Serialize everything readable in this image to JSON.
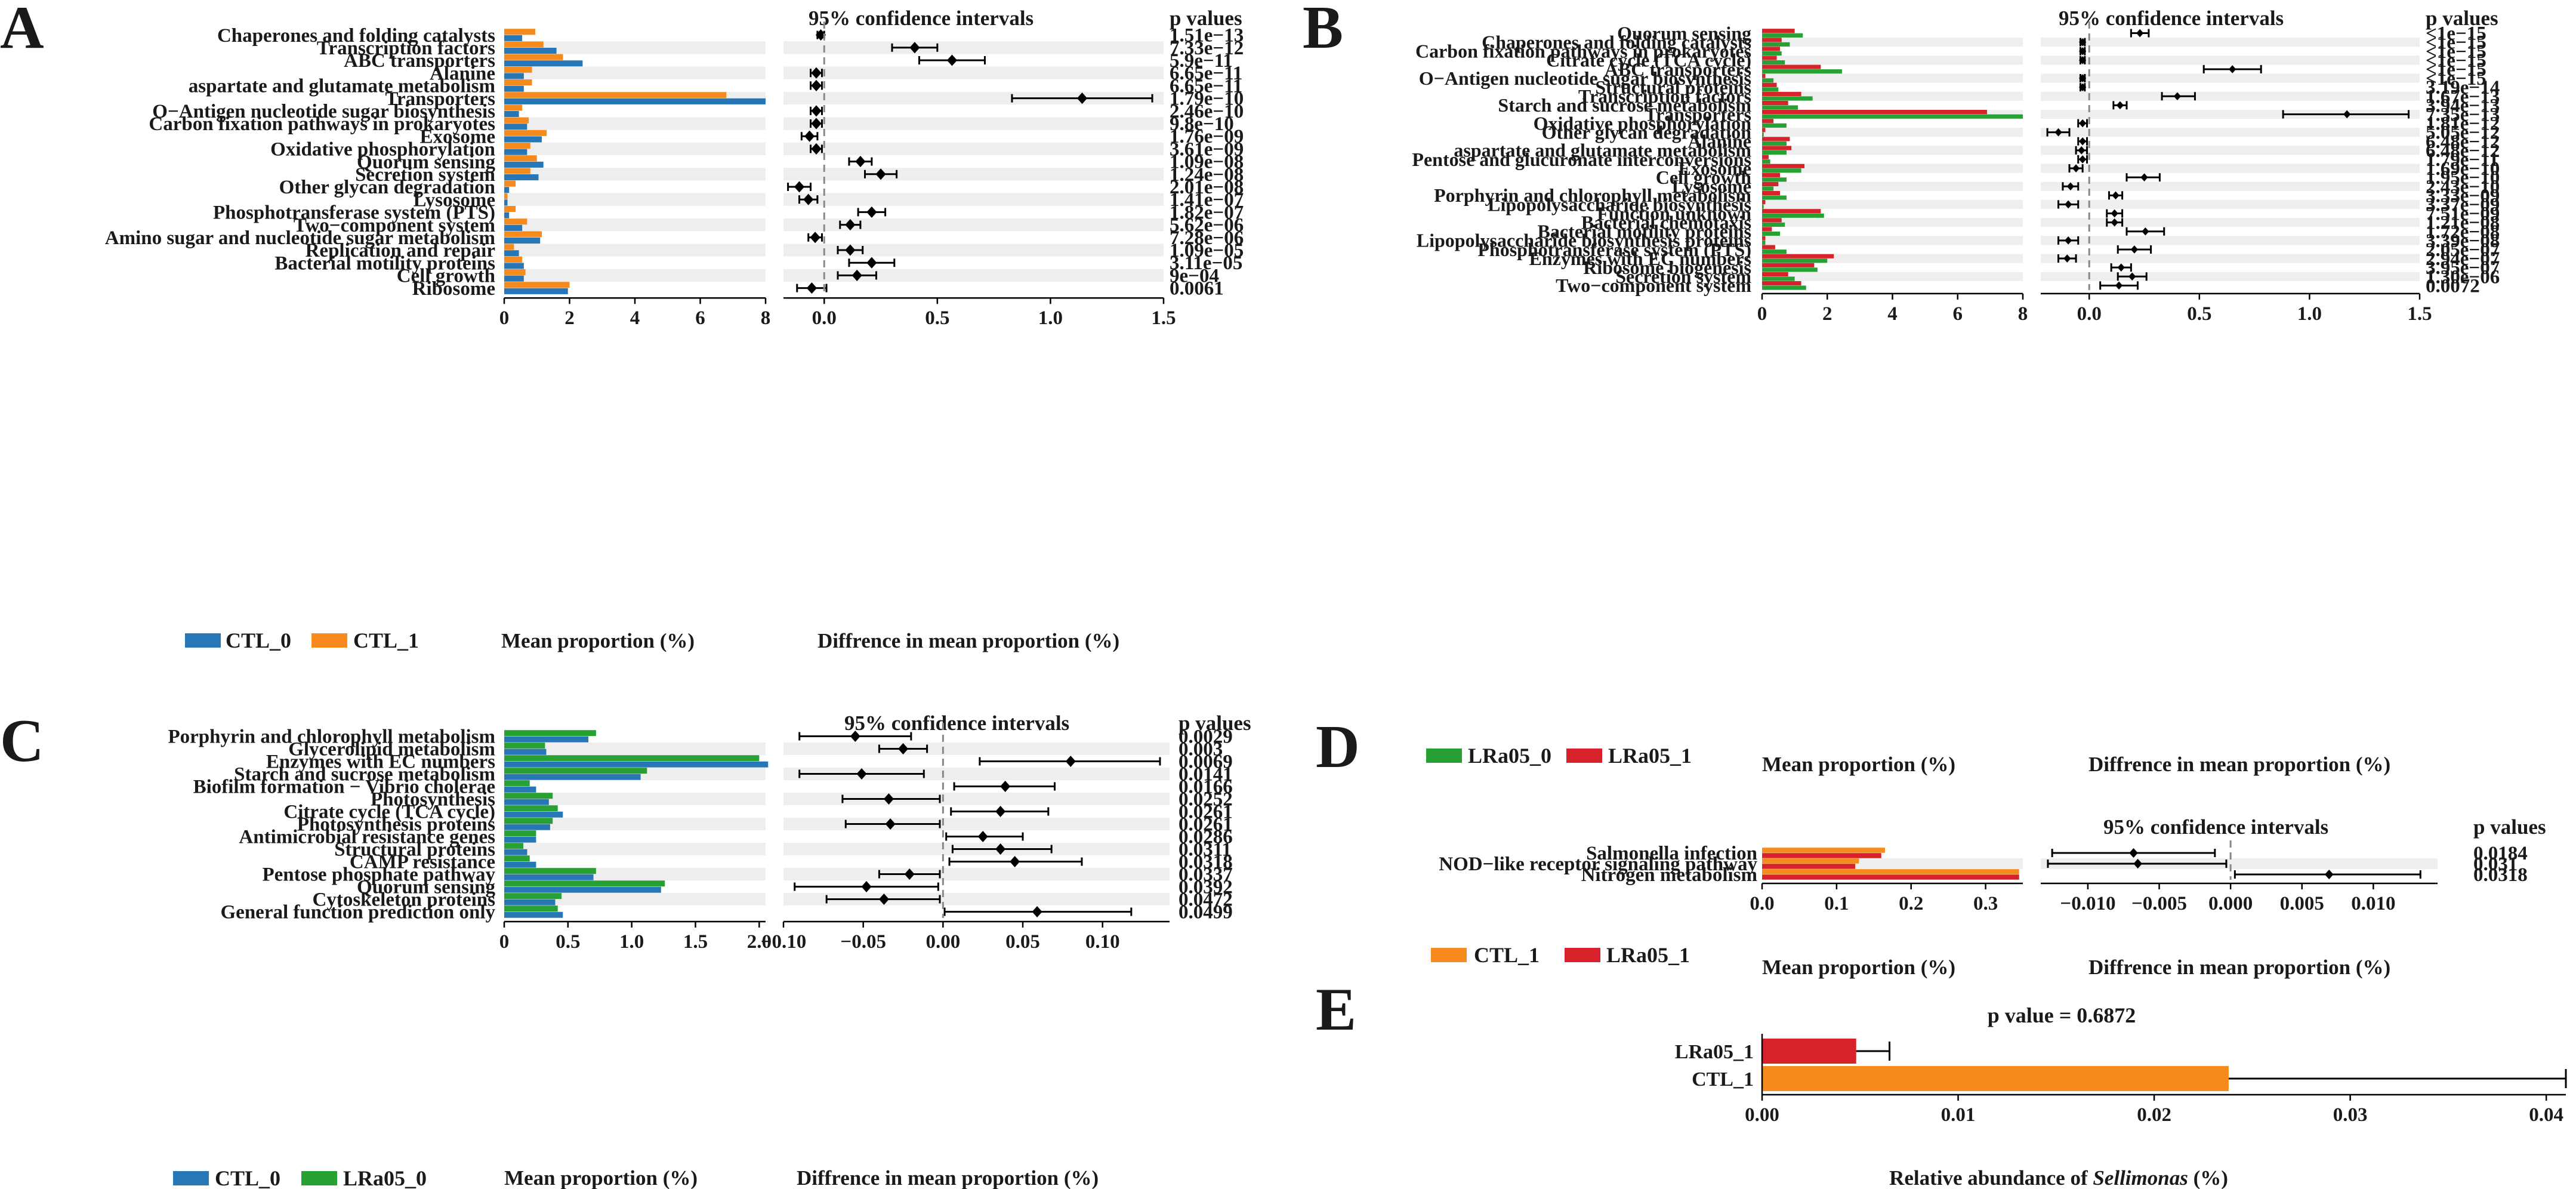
{
  "colors": {
    "CTL_0": "#2776b6",
    "CTL_1": "#f78a1d",
    "LRa05_0": "#27a133",
    "LRa05_1": "#d6232b",
    "stripe": "#eeeeee",
    "point": "#000000",
    "zeroline": "#888888"
  },
  "chart_data": [
    {
      "id": "A",
      "type": "bar",
      "panel_label": "A",
      "legend": [
        "CTL_0",
        "CTL_1"
      ],
      "legend_colors": [
        "#2776b6",
        "#f78a1d"
      ],
      "bar_order": [
        "CTL_1",
        "CTL_0"
      ],
      "xlabel": "Mean proportion (%)",
      "ci_header": "95% confidence intervals",
      "p_header": "p values",
      "ci_xlabel": "Diffrence in mean proportion (%)",
      "bar_xlim": [
        0,
        8
      ],
      "bar_ticks": [
        "0",
        "2",
        "4",
        "6",
        "8"
      ],
      "ci_xlim": [
        -0.18,
        1.5
      ],
      "ci_ticks": [
        "0.0",
        "0.5",
        "1.0",
        "1.5"
      ],
      "categories": [
        "Chaperones and folding catalysts",
        "Transcription factors",
        "ABC transporters",
        "Alanine",
        "aspartate and glutamate metabolism",
        "Transporters",
        "O−Antigen nucleotide sugar biosynthesis",
        "Carbon fixation pathways in prokaryotes",
        "Exosome",
        "Oxidative phosphorylation",
        "Quorum sensing",
        "Secretion system",
        "Other glycan degradation",
        "Lysosome",
        "Phosphotransferase system (PTS)",
        "Two−component system",
        "Amino sugar and nucleotide sugar metabolism",
        "Replication and repair",
        "Bacterial motility proteins",
        "Cell growth",
        "Ribosome"
      ],
      "series": [
        {
          "name": "CTL_1",
          "values": [
            0.95,
            1.2,
            1.8,
            0.85,
            0.85,
            6.8,
            0.55,
            0.75,
            1.3,
            0.8,
            1.0,
            0.8,
            0.35,
            0.1,
            0.35,
            0.7,
            1.15,
            0.3,
            0.55,
            0.65,
            2.0
          ]
        },
        {
          "name": "CTL_0",
          "values": [
            0.55,
            1.6,
            2.4,
            0.6,
            0.6,
            8.0,
            0.45,
            0.7,
            1.15,
            0.7,
            1.2,
            1.05,
            0.15,
            0.1,
            0.15,
            0.55,
            1.1,
            0.45,
            0.6,
            0.6,
            1.95
          ]
        }
      ],
      "ci": [
        [
          -0.03,
          0.0
        ],
        [
          0.3,
          0.5
        ],
        [
          0.42,
          0.71
        ],
        [
          -0.06,
          -0.01
        ],
        [
          -0.06,
          -0.01
        ],
        [
          0.83,
          1.45
        ],
        [
          -0.06,
          -0.01
        ],
        [
          -0.06,
          -0.01
        ],
        [
          -0.1,
          -0.03
        ],
        [
          -0.06,
          -0.01
        ],
        [
          0.11,
          0.21
        ],
        [
          0.18,
          0.32
        ],
        [
          -0.16,
          -0.06
        ],
        [
          -0.11,
          -0.03
        ],
        [
          0.15,
          0.27
        ],
        [
          0.07,
          0.16
        ],
        [
          -0.07,
          -0.01
        ],
        [
          0.06,
          0.17
        ],
        [
          0.11,
          0.31
        ],
        [
          0.06,
          0.23
        ],
        [
          -0.12,
          0.01
        ]
      ],
      "estimates": [
        -0.015,
        0.4,
        0.565,
        -0.035,
        -0.035,
        1.14,
        -0.035,
        -0.035,
        -0.065,
        -0.035,
        0.16,
        0.25,
        -0.11,
        -0.07,
        0.21,
        0.115,
        -0.04,
        0.115,
        0.21,
        0.145,
        -0.055
      ],
      "pvalues": [
        "1.51e−13",
        "7.33e−12",
        "5.9e−11",
        "6.65e−11",
        "6.65e−11",
        "1.79e−10",
        "2.46e−10",
        "9.8e−10",
        "1.76e−09",
        "3.61e−09",
        "1.09e−08",
        "1.24e−08",
        "2.01e−08",
        "1.41e−07",
        "1.82e−07",
        "5.62e−06",
        "7.28e−06",
        "1.09e−05",
        "3.11e−05",
        "9e−04",
        "0.0061"
      ]
    },
    {
      "id": "B",
      "type": "bar",
      "panel_label": "B",
      "legend": [
        "LRa05_0",
        "LRa05_1"
      ],
      "legend_colors": [
        "#27a133",
        "#d6232b"
      ],
      "bar_order": [
        "LRa05_1",
        "LRa05_0"
      ],
      "xlabel": "Mean proportion (%)",
      "ci_header": "95% confidence intervals",
      "p_header": "p values",
      "ci_xlabel": "Diffrence in mean proportion (%)",
      "bar_xlim": [
        0,
        8
      ],
      "bar_ticks": [
        "0",
        "2",
        "4",
        "6",
        "8"
      ],
      "ci_xlim": [
        -0.22,
        1.5
      ],
      "ci_ticks": [
        "0.0",
        "0.5",
        "1.0",
        "1.5"
      ],
      "categories": [
        "Quorum sensing",
        "Chaperones and folding catalysts",
        "Carbon fixation pathways in prokaryotes",
        "Citrate cycle (TCA cycle)",
        "ABC transporters",
        "O−Antigen nucleotide sugar biosynthesis",
        "Structural proteins",
        "Transcription factors",
        "Starch and sucrose metabolism",
        "Transporters",
        "Oxidative phosphorylation",
        "Other glycan degradation",
        "Alanine",
        "aspartate and glutamate metabolism",
        "Pentose and glucuronate interconversions",
        "Exosome",
        "Cell growth",
        "Lysosome",
        "Porphyrin and chlorophyll metabolism",
        "Lipopolysaccharide biosynthesis",
        "Function unknown",
        "Bacterial chemotaxis",
        "Bacterial motility proteins",
        "Lipopolysaccharide biosynthesis proteins",
        "Phosphotransferase system (PTS)",
        "Enzymes with EC numbers",
        "Ribosome biogenesis",
        "Secretion system",
        "Two−component system"
      ],
      "series": [
        {
          "name": "LRa05_1",
          "values": [
            1.0,
            0.6,
            0.55,
            0.45,
            1.8,
            0.1,
            0.45,
            1.2,
            0.8,
            6.9,
            0.35,
            0.1,
            0.85,
            0.9,
            0.2,
            1.3,
            0.55,
            0.5,
            0.55,
            0.1,
            1.8,
            0.6,
            0.3,
            0.1,
            0.4,
            2.2,
            1.6,
            0.8,
            1.2
          ]
        },
        {
          "name": "LRa05_0",
          "values": [
            1.25,
            0.85,
            0.6,
            0.7,
            2.45,
            0.35,
            0.5,
            1.55,
            1.1,
            8.0,
            0.75,
            0.05,
            0.75,
            0.75,
            0.25,
            1.2,
            0.75,
            0.35,
            0.75,
            0.05,
            1.9,
            0.7,
            0.55,
            0.1,
            0.75,
            2.0,
            1.7,
            1.0,
            1.35
          ]
        }
      ],
      "ci": [
        [
          0.19,
          0.27
        ],
        [
          -0.04,
          -0.02
        ],
        [
          -0.04,
          -0.02
        ],
        [
          -0.04,
          -0.02
        ],
        [
          0.52,
          0.78
        ],
        [
          -0.04,
          -0.02
        ],
        [
          -0.04,
          -0.02
        ],
        [
          0.33,
          0.48
        ],
        [
          0.11,
          0.17
        ],
        [
          0.88,
          1.45
        ],
        [
          -0.05,
          -0.01
        ],
        [
          -0.19,
          -0.09
        ],
        [
          -0.05,
          -0.01
        ],
        [
          -0.06,
          -0.01
        ],
        [
          -0.05,
          -0.01
        ],
        [
          -0.09,
          -0.03
        ],
        [
          0.17,
          0.32
        ],
        [
          -0.12,
          -0.05
        ],
        [
          0.09,
          0.15
        ],
        [
          -0.14,
          -0.05
        ],
        [
          0.08,
          0.15
        ],
        [
          0.08,
          0.15
        ],
        [
          0.17,
          0.34
        ],
        [
          -0.14,
          -0.05
        ],
        [
          0.13,
          0.28
        ],
        [
          -0.14,
          -0.06
        ],
        [
          0.1,
          0.19
        ],
        [
          0.13,
          0.26
        ],
        [
          0.05,
          0.22
        ]
      ],
      "estimates": [
        0.23,
        -0.03,
        -0.03,
        -0.03,
        0.65,
        -0.03,
        -0.03,
        0.4,
        0.14,
        1.17,
        -0.03,
        -0.14,
        -0.03,
        -0.035,
        -0.03,
        -0.06,
        0.25,
        -0.085,
        0.12,
        -0.095,
        0.115,
        0.115,
        0.255,
        -0.095,
        0.205,
        -0.1,
        0.145,
        0.195,
        0.135
      ],
      "pvalues": [
        "<1e−15",
        "<1e−15",
        "<1e−15",
        "<1e−15",
        "<1e−15",
        "<1e−15",
        "3.19e−14",
        "1.67e−13",
        "3.94e−13",
        "7.35e−13",
        "1.81e−12",
        "5.05e−12",
        "6.48e−12",
        "6.48e−12",
        "1.79e−11",
        "1.69e−10",
        "1.95e−10",
        "2.43e−10",
        "3.33e−09",
        "3.37e−09",
        "7.51e−09",
        "1.21e−08",
        "1.72e−08",
        "3.39e−08",
        "2.05e−07",
        "2.94e−07",
        "3.95e−07",
        "1.30e−06",
        "0.0072"
      ]
    },
    {
      "id": "C",
      "type": "bar",
      "panel_label": "C",
      "legend": [
        "CTL_0",
        "LRa05_0"
      ],
      "legend_colors": [
        "#2776b6",
        "#27a133"
      ],
      "bar_order": [
        "LRa05_0",
        "CTL_0"
      ],
      "xlabel": "Mean proportion (%)",
      "ci_header": "95% confidence intervals",
      "p_header": "p values",
      "ci_xlabel": "Diffrence in mean proportion (%)",
      "bar_xlim": [
        0,
        2.05
      ],
      "bar_ticks": [
        "0",
        "0.5",
        "1.0",
        "1.5",
        "2.0"
      ],
      "ci_xlim": [
        -0.1,
        0.142
      ],
      "ci_ticks": [
        "−0.10",
        "−0.05",
        "0.00",
        "0.05",
        "0.10"
      ],
      "categories": [
        "Porphyrin and chlorophyll metabolism",
        "Glycerolipid metabolism",
        "Enzymes with EC numbers",
        "Starch and sucrose metabolism",
        "Biofilm formation − Vibrio cholerae",
        "Photosynthesis",
        "Citrate cycle (TCA cycle)",
        "Photosynthesis proteins",
        "Antimicrobial resistance genes",
        "Structural proteins",
        "CAMP resistance",
        "Pentose phosphate pathway",
        "Quorum sensing",
        "Cytoskeleton proteins",
        "General function prediction only"
      ],
      "series": [
        {
          "name": "LRa05_0",
          "values": [
            0.72,
            0.32,
            2.0,
            1.12,
            0.2,
            0.38,
            0.42,
            0.38,
            0.25,
            0.15,
            0.2,
            0.72,
            1.26,
            0.45,
            0.42
          ]
        },
        {
          "name": "CTL_0",
          "values": [
            0.66,
            0.33,
            2.07,
            1.07,
            0.25,
            0.35,
            0.46,
            0.36,
            0.25,
            0.18,
            0.25,
            0.7,
            1.23,
            0.4,
            0.46
          ]
        }
      ],
      "ci": [
        [
          -0.09,
          -0.02
        ],
        [
          -0.04,
          -0.01
        ],
        [
          0.023,
          0.136
        ],
        [
          -0.09,
          -0.012
        ],
        [
          0.007,
          0.07
        ],
        [
          -0.063,
          -0.002
        ],
        [
          0.005,
          0.066
        ],
        [
          -0.061,
          -0.002
        ],
        [
          0.002,
          0.05
        ],
        [
          0.006,
          0.068
        ],
        [
          0.004,
          0.087
        ],
        [
          -0.04,
          -0.002
        ],
        [
          -0.093,
          -0.003
        ],
        [
          -0.073,
          -0.002
        ],
        [
          0.001,
          0.118
        ]
      ],
      "estimates": [
        -0.055,
        -0.025,
        0.08,
        -0.051,
        0.039,
        -0.034,
        0.036,
        -0.033,
        0.025,
        0.036,
        0.045,
        -0.021,
        -0.048,
        -0.037,
        0.059
      ],
      "pvalues": [
        "0.0029",
        "0.003",
        "0.0069",
        "0.0141",
        "0.0166",
        "0.0252",
        "0.0261",
        "0.0261",
        "0.0286",
        "0.0311",
        "0.0318",
        "0.0337",
        "0.0392",
        "0.0472",
        "0.0499"
      ]
    },
    {
      "id": "D",
      "type": "bar",
      "panel_label": "D",
      "legend": [
        "CTL_1",
        "LRa05_1"
      ],
      "legend_colors": [
        "#f78a1d",
        "#d6232b"
      ],
      "bar_order": [
        "CTL_1",
        "LRa05_1"
      ],
      "xlabel": "Mean proportion (%)",
      "ci_header": "95% confidence intervals",
      "p_header": "p values",
      "ci_xlabel": "Diffrence in mean proportion (%)",
      "bar_xlim": [
        0,
        0.35
      ],
      "bar_ticks": [
        "0.0",
        "0.1",
        "0.2",
        "0.3"
      ],
      "ci_xlim": [
        -0.0133,
        0.0145
      ],
      "ci_ticks": [
        "−0.010",
        "−0.005",
        "0.000",
        "0.005",
        "0.010"
      ],
      "categories": [
        "Salmonella infection",
        "NOD−like receptor signaling pathway",
        "Nitrogen metabolism"
      ],
      "series": [
        {
          "name": "CTL_1",
          "values": [
            0.165,
            0.13,
            0.345
          ]
        },
        {
          "name": "LRa05_1",
          "values": [
            0.16,
            0.125,
            0.345
          ]
        }
      ],
      "ci": [
        [
          -0.0125,
          -0.0011
        ],
        [
          -0.0128,
          -0.0003
        ],
        [
          0.0003,
          0.0133
        ]
      ],
      "estimates": [
        -0.0068,
        -0.0065,
        0.0069
      ],
      "pvalues": [
        "0.0184",
        "0.031",
        "0.0318"
      ]
    },
    {
      "id": "E",
      "type": "bar",
      "panel_label": "E",
      "title": "p value = 0.6872",
      "xlabel": "Relative abundance of Sellimonas (%)",
      "xlabel_prefix": "Relative abundance of",
      "xlabel_species": "Sellimonas",
      "xlabel_suffix": "(%)",
      "xlim": [
        0,
        0.041
      ],
      "ticks": [
        "0.00",
        "0.01",
        "0.02",
        "0.03",
        "0.04"
      ],
      "categories": [
        "LRa05_1",
        "CTL_1"
      ],
      "values": [
        0.0048,
        0.0238
      ],
      "errors": [
        0.0017,
        0.0172
      ],
      "bar_colors": [
        "#d6232b",
        "#f78a1d"
      ]
    }
  ]
}
